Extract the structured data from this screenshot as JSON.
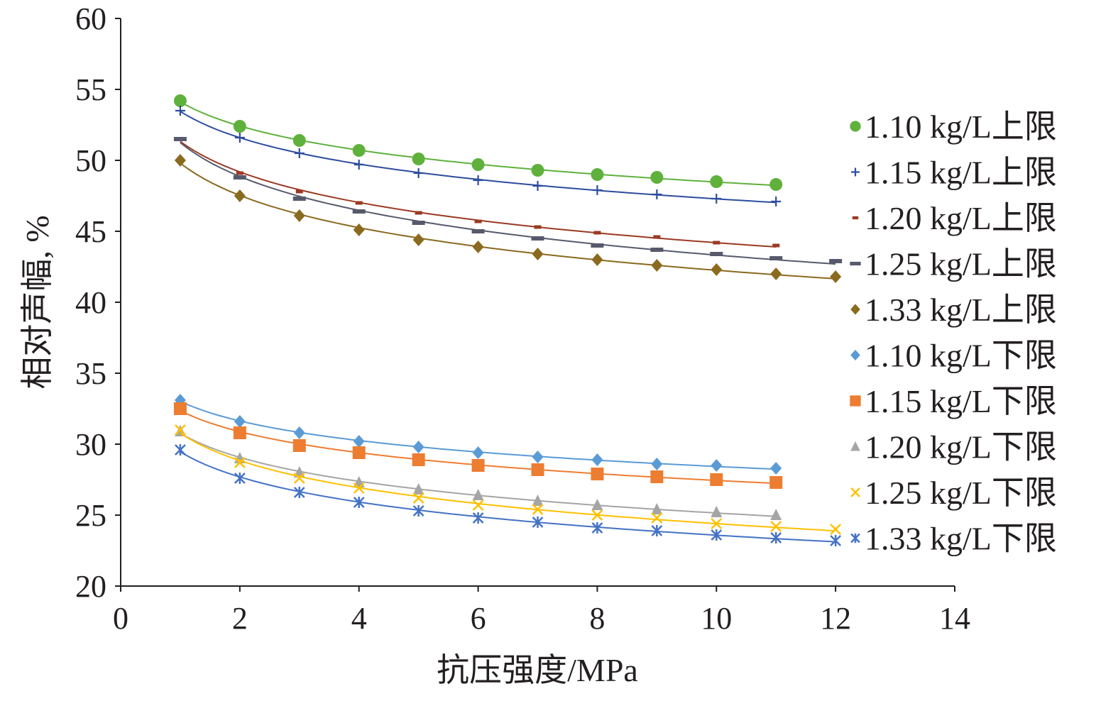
{
  "chart_data": {
    "type": "scatter",
    "title": "",
    "xlabel": "抗压强度/MPa",
    "ylabel": "相对声幅, %",
    "xlim": [
      0,
      14
    ],
    "ylim": [
      20,
      60
    ],
    "xticks": [
      "0",
      "2",
      "4",
      "6",
      "8",
      "10",
      "12",
      "14"
    ],
    "yticks": [
      "20",
      "25",
      "30",
      "35",
      "40",
      "45",
      "50",
      "55",
      "60"
    ],
    "grid": false,
    "legend_position": "right",
    "trendline": "logarithmic",
    "series": [
      {
        "name": "1.10 kg/L上限",
        "color": "#5fb13c",
        "marker": "circle",
        "x": [
          1,
          2,
          3,
          4,
          5,
          6,
          7,
          8,
          9,
          10,
          11
        ],
        "y": [
          54.2,
          52.4,
          51.4,
          50.7,
          50.1,
          49.7,
          49.3,
          49.0,
          48.8,
          48.5,
          48.3
        ]
      },
      {
        "name": "1.15 kg/L上限",
        "color": "#2e4d9e",
        "marker": "plus",
        "x": [
          1,
          2,
          3,
          4,
          5,
          6,
          7,
          8,
          9,
          10,
          11
        ],
        "y": [
          53.5,
          51.6,
          50.5,
          49.7,
          49.1,
          48.6,
          48.2,
          47.9,
          47.6,
          47.3,
          47.1
        ]
      },
      {
        "name": "1.20 kg/L上限",
        "color": "#9b3a23",
        "marker": "dash-small",
        "x": [
          1,
          2,
          3,
          4,
          5,
          6,
          7,
          8,
          9,
          10,
          11
        ],
        "y": [
          51.5,
          49.1,
          47.8,
          47.0,
          46.3,
          45.7,
          45.3,
          44.9,
          44.6,
          44.2,
          44.0
        ]
      },
      {
        "name": "1.25 kg/L上限",
        "color": "#575a6c",
        "marker": "dash",
        "x": [
          1,
          2,
          3,
          4,
          5,
          6,
          7,
          8,
          9,
          10,
          11,
          12
        ],
        "y": [
          51.5,
          48.8,
          47.3,
          46.4,
          45.6,
          45.0,
          44.5,
          44.0,
          43.7,
          43.4,
          43.1,
          42.9
        ]
      },
      {
        "name": "1.33 kg/L上限",
        "color": "#8a6a1e",
        "marker": "diamond",
        "x": [
          1,
          2,
          3,
          4,
          5,
          6,
          7,
          8,
          9,
          10,
          11,
          12
        ],
        "y": [
          50.0,
          47.5,
          46.1,
          45.1,
          44.4,
          43.9,
          43.4,
          43.0,
          42.6,
          42.3,
          42.0,
          41.8
        ]
      },
      {
        "name": "1.10 kg/L下限",
        "color": "#5b9bd5",
        "marker": "diamond",
        "x": [
          1,
          2,
          3,
          4,
          5,
          6,
          7,
          8,
          9,
          10,
          11
        ],
        "y": [
          33.1,
          31.6,
          30.8,
          30.2,
          29.8,
          29.4,
          29.1,
          28.9,
          28.6,
          28.5,
          28.3
        ]
      },
      {
        "name": "1.15 kg/L下限",
        "color": "#ed7d31",
        "marker": "square",
        "x": [
          1,
          2,
          3,
          4,
          5,
          6,
          7,
          8,
          9,
          10,
          11
        ],
        "y": [
          32.5,
          30.8,
          29.9,
          29.4,
          28.9,
          28.5,
          28.2,
          27.9,
          27.7,
          27.5,
          27.3
        ]
      },
      {
        "name": "1.20 kg/L下限",
        "color": "#a5a5a5",
        "marker": "triangle",
        "x": [
          1,
          2,
          3,
          4,
          5,
          6,
          7,
          8,
          9,
          10,
          11
        ],
        "y": [
          30.9,
          29.0,
          28.0,
          27.3,
          26.8,
          26.4,
          26.0,
          25.7,
          25.4,
          25.2,
          25.0
        ]
      },
      {
        "name": "1.25 kg/L下限",
        "color": "#ffc000",
        "marker": "x",
        "x": [
          1,
          2,
          3,
          4,
          5,
          6,
          7,
          8,
          9,
          10,
          11,
          12
        ],
        "y": [
          31.0,
          28.7,
          27.6,
          26.9,
          26.2,
          25.7,
          25.4,
          25.0,
          24.8,
          24.4,
          24.2,
          24.0
        ]
      },
      {
        "name": "1.33 kg/L下限",
        "color": "#4472c4",
        "marker": "asterisk",
        "x": [
          1,
          2,
          3,
          4,
          5,
          6,
          7,
          8,
          9,
          10,
          11,
          12
        ],
        "y": [
          29.6,
          27.6,
          26.6,
          25.9,
          25.3,
          24.8,
          24.5,
          24.1,
          23.9,
          23.6,
          23.4,
          23.2
        ]
      }
    ]
  }
}
